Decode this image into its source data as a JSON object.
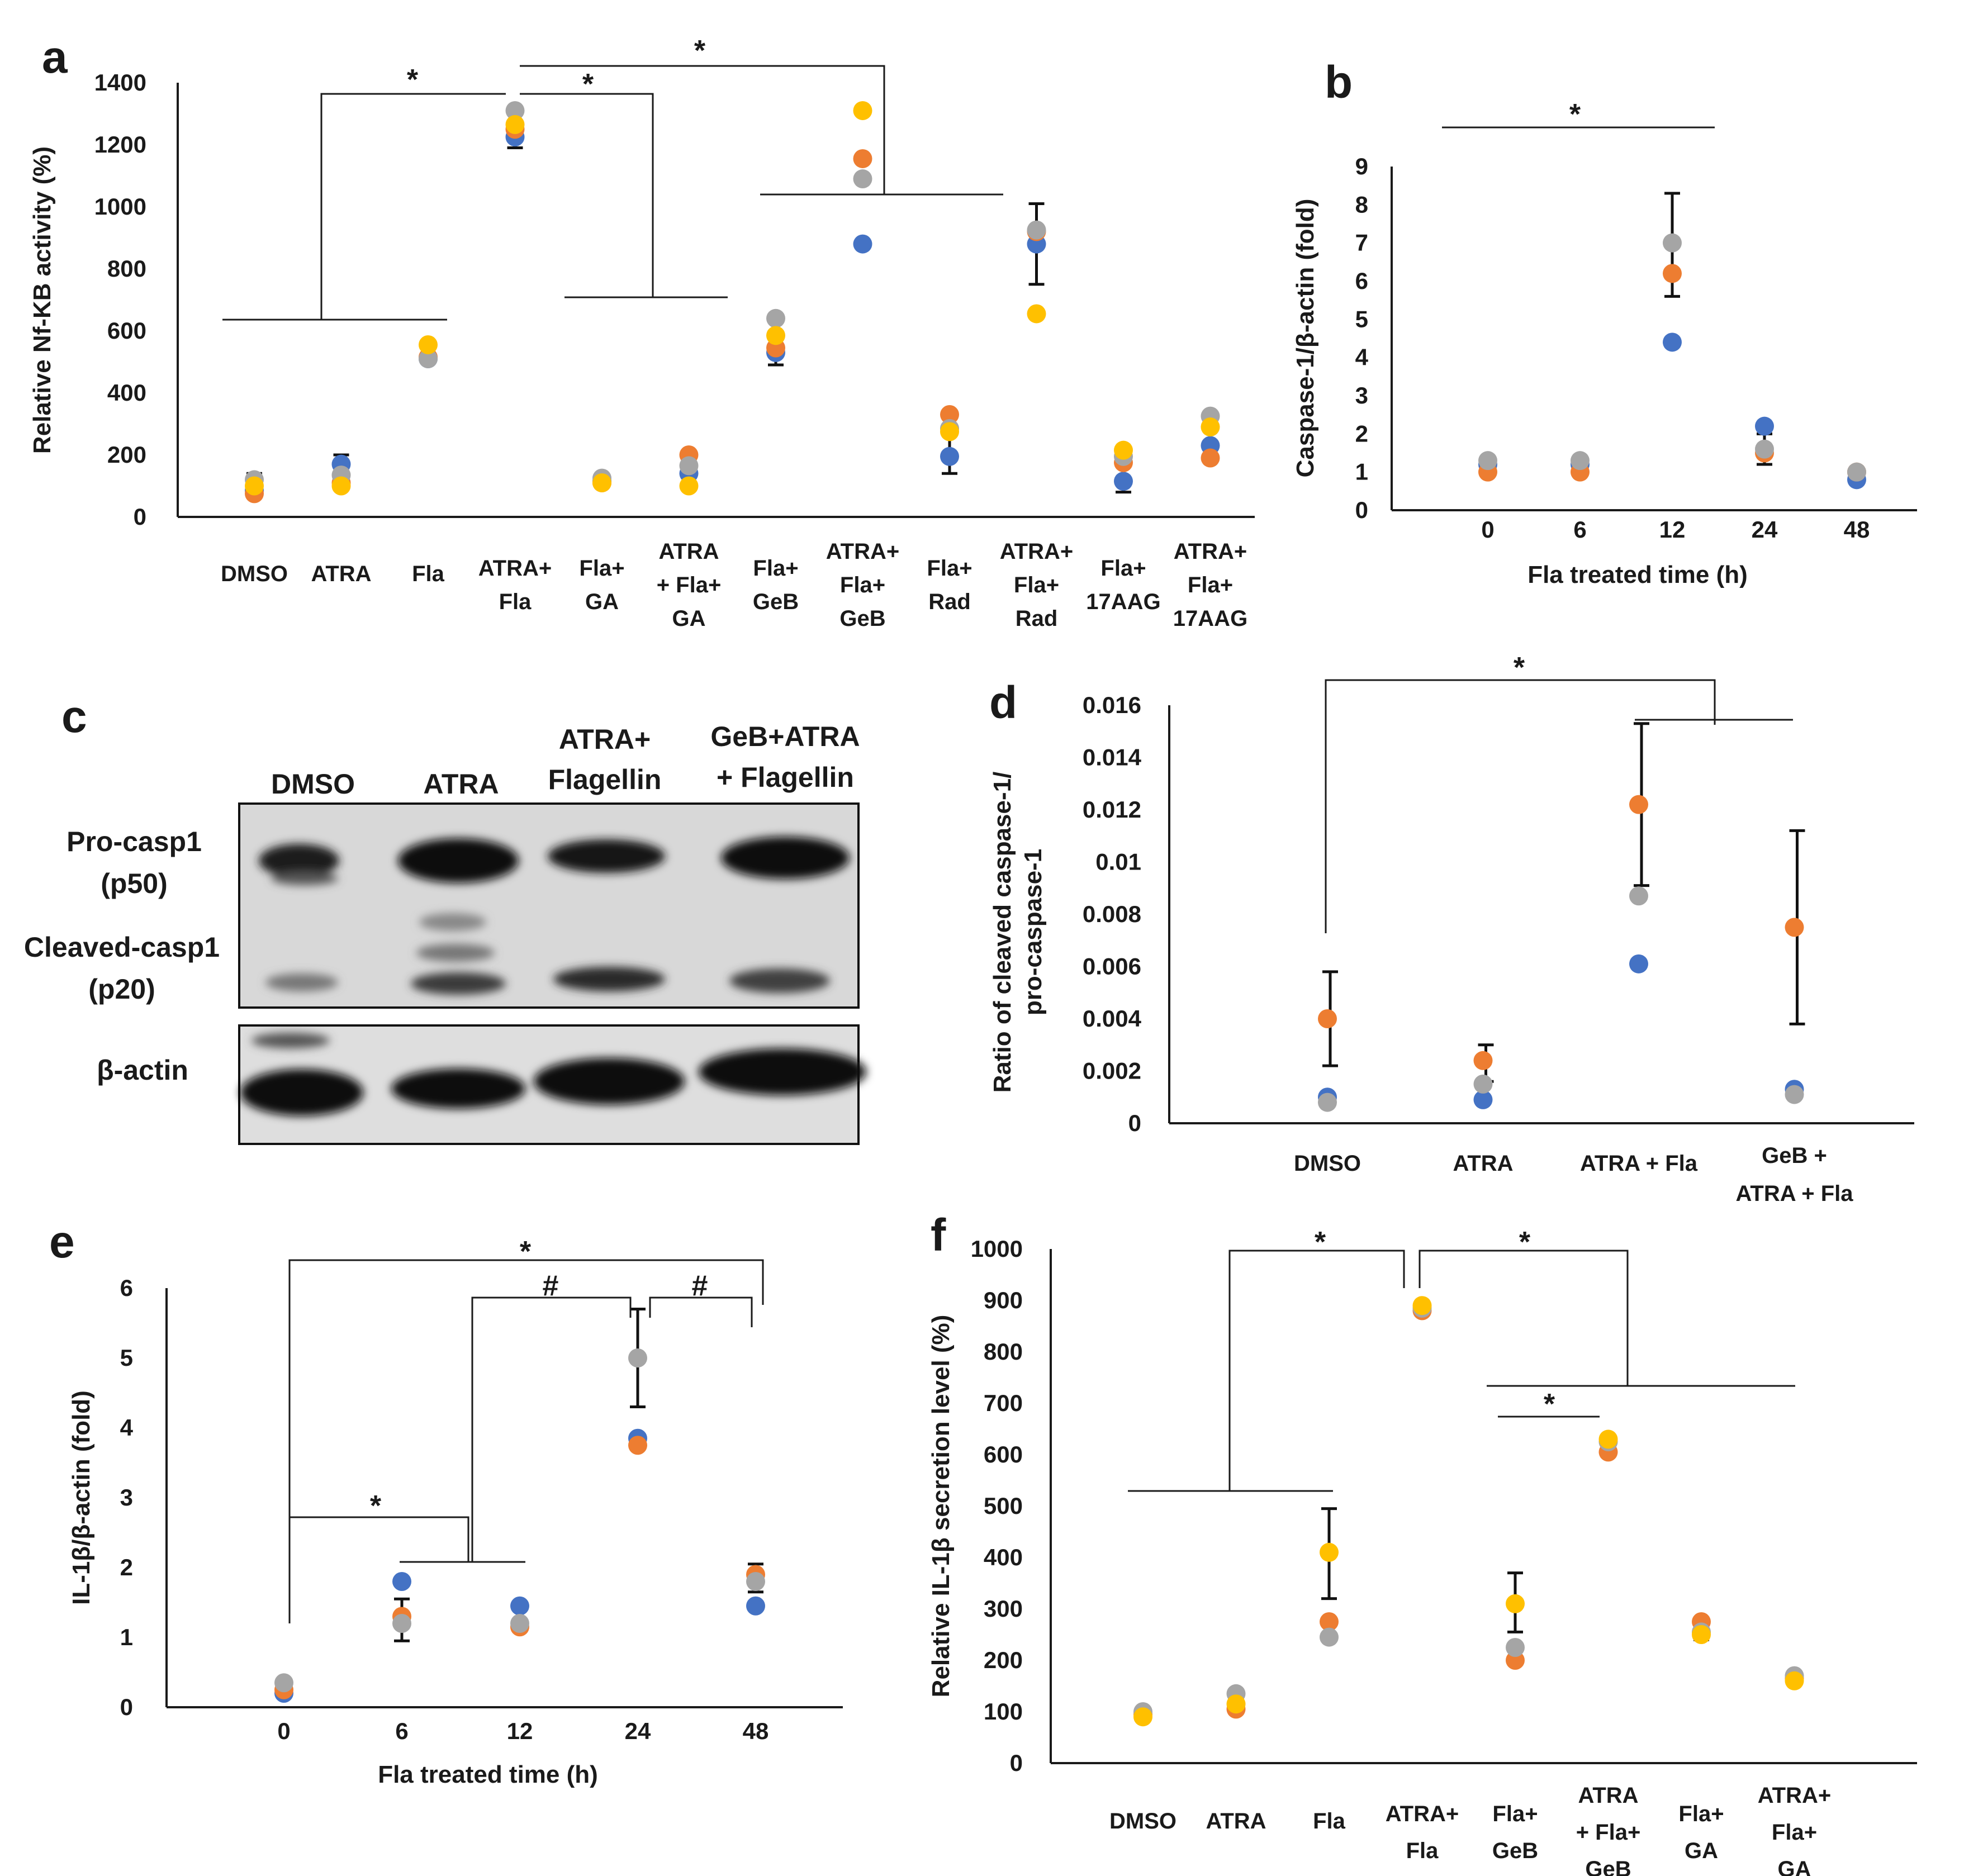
{
  "colors": {
    "blue": "#4472C4",
    "orange": "#ED7D31",
    "gray": "#A5A5A5",
    "yellow": "#FFC000",
    "ink": "#1a1a1a"
  },
  "chart_data": [
    {
      "panel": "a",
      "type": "scatter",
      "ylabel": "Relative Nf-KB activity (%)",
      "xlabel": "",
      "ylim": [
        0,
        1400
      ],
      "yticks": [
        "0",
        "200",
        "400",
        "600",
        "800",
        "1000",
        "1200",
        "1400"
      ],
      "categories": [
        [
          "DMSO"
        ],
        [
          "ATRA"
        ],
        [
          "Fla"
        ],
        [
          "ATRA+",
          "Fla"
        ],
        [
          "Fla+",
          "GA"
        ],
        [
          "ATRA",
          "+ Fla+",
          "GA"
        ],
        [
          "Fla+",
          "GeB"
        ],
        [
          "ATRA+",
          "Fla+",
          "GeB"
        ],
        [
          "Fla+",
          "Rad"
        ],
        [
          "ATRA+",
          "Fla+",
          "Rad"
        ],
        [
          "Fla+",
          "17AAG"
        ],
        [
          "ATRA+",
          "Fla+",
          "17AAG"
        ]
      ],
      "series": [
        {
          "name": "rep1",
          "color": "blue",
          "values": [
            85,
            170,
            510,
            1225,
            115,
            140,
            530,
            880,
            195,
            880,
            115,
            230
          ]
        },
        {
          "name": "rep2",
          "color": "orange",
          "values": [
            75,
            110,
            515,
            1250,
            110,
            200,
            545,
            1155,
            330,
            920,
            175,
            190
          ]
        },
        {
          "name": "rep3",
          "color": "gray",
          "values": [
            120,
            135,
            510,
            1310,
            125,
            165,
            640,
            1090,
            285,
            925,
            195,
            325
          ]
        },
        {
          "name": "rep4",
          "color": "yellow",
          "values": [
            100,
            100,
            555,
            1265,
            110,
            100,
            585,
            1310,
            275,
            655,
            215,
            290
          ]
        }
      ],
      "error_bars": [
        [
          0,
          2,
          100,
          140
        ],
        [
          1,
          2,
          110,
          200
        ],
        [
          2,
          2,
          500,
          520
        ],
        [
          3,
          2,
          1190,
          1260
        ],
        [
          6,
          2,
          490,
          530
        ],
        [
          9,
          2,
          750,
          1010
        ],
        [
          8,
          2,
          140,
          280
        ],
        [
          10,
          2,
          80,
          120
        ]
      ],
      "significance": [
        "*",
        "*",
        "*"
      ]
    },
    {
      "panel": "b",
      "type": "scatter",
      "ylabel": "Caspase-1/β-actin (fold)",
      "xlabel": "Fla treated time (h)",
      "ylim": [
        0,
        9
      ],
      "yticks": [
        "0",
        "1",
        "2",
        "3",
        "4",
        "5",
        "6",
        "7",
        "8",
        "9"
      ],
      "categories": [
        "0",
        "6",
        "12",
        "24",
        "48"
      ],
      "series": [
        {
          "name": "rep1",
          "color": "blue",
          "values": [
            1.2,
            1.2,
            4.4,
            2.2,
            0.8
          ]
        },
        {
          "name": "rep2",
          "color": "orange",
          "values": [
            1.0,
            1.0,
            6.2,
            1.5,
            1.0
          ]
        },
        {
          "name": "rep3",
          "color": "gray",
          "values": [
            1.3,
            1.3,
            7.0,
            1.6,
            1.0
          ]
        }
      ],
      "error_bars": [
        [
          2,
          5.6,
          8.3
        ],
        [
          3,
          1.2,
          2.0
        ]
      ],
      "significance": [
        "*"
      ]
    },
    {
      "panel": "d",
      "type": "scatter",
      "ylabel": [
        "Ratio of cleaved caspase-1/",
        "pro-caspase-1"
      ],
      "xlabel": "",
      "ylim": [
        0,
        0.016
      ],
      "yticks": [
        "0",
        "0.002",
        "0.004",
        "0.006",
        "0.008",
        "0.01",
        "0.012",
        "0.014",
        "0.016"
      ],
      "categories": [
        [
          "DMSO"
        ],
        [
          "ATRA"
        ],
        [
          "ATRA + Fla"
        ],
        [
          "GeB +",
          "ATRA + Fla"
        ]
      ],
      "series": [
        {
          "name": "rep1",
          "color": "blue",
          "values": [
            0.001,
            0.0009,
            0.0061,
            0.0013
          ]
        },
        {
          "name": "rep2",
          "color": "orange",
          "values": [
            0.004,
            0.0024,
            0.0122,
            0.0075
          ]
        },
        {
          "name": "rep3",
          "color": "gray",
          "values": [
            0.0008,
            0.0015,
            0.0087,
            0.0011
          ]
        }
      ],
      "error_bars": [
        [
          0,
          0.0022,
          0.0058
        ],
        [
          1,
          0.0016,
          0.003
        ],
        [
          2,
          0.0091,
          0.0153
        ],
        [
          3,
          0.0038,
          0.0112
        ]
      ],
      "significance": [
        "*"
      ]
    },
    {
      "panel": "e",
      "type": "scatter",
      "ylabel": "IL-1β/β-actin (fold)",
      "xlabel": "Fla treated time (h)",
      "ylim": [
        0,
        6
      ],
      "yticks": [
        "0",
        "1",
        "2",
        "3",
        "4",
        "5",
        "6"
      ],
      "categories": [
        "0",
        "6",
        "12",
        "24",
        "48"
      ],
      "series": [
        {
          "name": "rep1",
          "color": "blue",
          "values": [
            0.2,
            1.8,
            1.45,
            3.85,
            1.45
          ]
        },
        {
          "name": "rep2",
          "color": "orange",
          "values": [
            0.25,
            1.3,
            1.15,
            3.75,
            1.9
          ]
        },
        {
          "name": "rep3",
          "color": "gray",
          "values": [
            0.35,
            1.2,
            1.2,
            5.0,
            1.8
          ]
        }
      ],
      "error_bars": [
        [
          1,
          0.95,
          1.55
        ],
        [
          3,
          4.3,
          5.7
        ],
        [
          4,
          1.65,
          2.05
        ]
      ],
      "significance": [
        "*",
        "*",
        "#",
        "#"
      ]
    },
    {
      "panel": "f",
      "type": "scatter",
      "ylabel": "Relative IL-1β secretion level (%)",
      "xlabel": "",
      "ylim": [
        0,
        1000
      ],
      "yticks": [
        "0",
        "100",
        "200",
        "300",
        "400",
        "500",
        "600",
        "700",
        "800",
        "900",
        "1000"
      ],
      "categories": [
        [
          "DMSO"
        ],
        [
          "ATRA"
        ],
        [
          "Fla"
        ],
        [
          "ATRA+",
          "Fla"
        ],
        [
          "Fla+",
          "GeB"
        ],
        [
          "ATRA",
          "+ Fla+",
          "GeB"
        ],
        [
          "Fla+",
          "GA"
        ],
        [
          "ATRA+",
          "Fla+",
          "GA"
        ]
      ],
      "series": [
        {
          "name": "rep1",
          "color": "orange",
          "values": [
            95,
            105,
            275,
            880,
            200,
            605,
            275,
            165
          ]
        },
        {
          "name": "rep2",
          "color": "gray",
          "values": [
            100,
            135,
            245,
            885,
            225,
            625,
            255,
            170
          ]
        },
        {
          "name": "rep3",
          "color": "yellow",
          "values": [
            90,
            115,
            410,
            890,
            310,
            630,
            250,
            160
          ]
        }
      ],
      "error_bars": [
        [
          2,
          320,
          495
        ],
        [
          4,
          255,
          370
        ],
        [
          6,
          240,
          270
        ]
      ],
      "significance": [
        "*",
        "*",
        "*"
      ]
    }
  ],
  "panel_labels": {
    "a": "a",
    "b": "b",
    "c": "c",
    "d": "d",
    "e": "e",
    "f": "f"
  },
  "blot": {
    "lanes": [
      [
        "DMSO"
      ],
      [
        "ATRA"
      ],
      [
        "ATRA+",
        "Flagellin"
      ],
      [
        "GeB+ATRA",
        "+ Flagellin"
      ]
    ],
    "rows": [
      [
        "Pro-casp1",
        "(p50)"
      ],
      [
        "Cleaved-casp1",
        "(p20)"
      ],
      [
        "β-actin"
      ]
    ]
  }
}
